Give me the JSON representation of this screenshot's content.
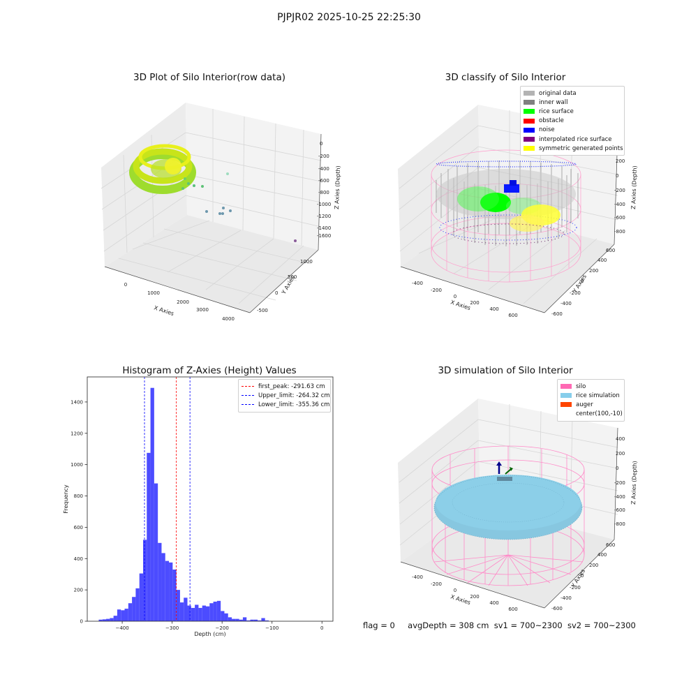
{
  "suptitle": "PJPJR02 2025-10-25 22:25:30",
  "footer": {
    "flag": "flag = 0",
    "avgDepth": "avgDepth = 308 cm",
    "sv1": "sv1 = 700~2300",
    "sv2": "sv2 = 700~2300"
  },
  "chart_data": [
    {
      "type": "scatter",
      "title": "3D Plot of Silo Interior(row data)",
      "xlabel": "X Axies",
      "ylabel": "Y Axies",
      "zlabel": "Z Axies (Depth)",
      "x_ticks": [
        "0",
        "1000",
        "2000",
        "3000",
        "4000"
      ],
      "y_ticks": [
        "-500",
        "0",
        "500",
        "1000"
      ],
      "z_ticks": [
        "0",
        "-200",
        "-400",
        "-600",
        "-800",
        "-1000",
        "-1200",
        "-1400",
        "-1600"
      ]
    },
    {
      "type": "scatter",
      "title": "3D classify of Silo Interior",
      "xlabel": "X Axies",
      "ylabel": "Y Axies",
      "zlabel": "Z Axies (Depth)",
      "x_ticks": [
        "-400",
        "-200",
        "0",
        "200",
        "400",
        "600"
      ],
      "y_ticks": [
        "-600",
        "-400",
        "-200",
        "0",
        "200",
        "400",
        "600"
      ],
      "z_ticks": [
        "200",
        "0",
        "-200",
        "-400",
        "-600",
        "-800"
      ],
      "z_top_tick": "0",
      "legend": [
        {
          "label": "original data",
          "color": "#b3b3b3"
        },
        {
          "label": "inner wall",
          "color": "#808080"
        },
        {
          "label": "rice surface",
          "color": "#00ff00"
        },
        {
          "label": "obstacle",
          "color": "#ff0000"
        },
        {
          "label": "noise",
          "color": "#0000ff"
        },
        {
          "label": "interpolated rice surface",
          "color": "#800080"
        },
        {
          "label": "symmetric generated points",
          "color": "#ffff00"
        }
      ],
      "legend_position": "upper-right"
    },
    {
      "type": "bar",
      "title": "Histogram of Z-Axies (Height) Values",
      "xlabel": "Depth (cm)",
      "ylabel": "Frequency",
      "bin_start": -447,
      "bin_width": 7.4,
      "values": [
        10,
        12,
        15,
        20,
        35,
        75,
        70,
        80,
        115,
        155,
        210,
        305,
        520,
        1075,
        1490,
        880,
        500,
        435,
        385,
        375,
        330,
        200,
        120,
        150,
        100,
        85,
        105,
        85,
        100,
        95,
        115,
        125,
        130,
        65,
        50,
        25,
        15,
        15,
        10,
        25,
        5,
        10,
        10,
        5,
        20,
        5
      ],
      "xlim": [
        -470,
        22
      ],
      "ylim": [
        0,
        1560
      ],
      "x_ticks": [
        -400,
        -300,
        -200,
        -100,
        0
      ],
      "y_ticks": [
        0,
        200,
        400,
        600,
        800,
        1000,
        1200,
        1400
      ],
      "bar_color": "#4c4cff",
      "lines": [
        {
          "label": "first_peak: -291.63 cm",
          "value": -291.63,
          "color": "#ff0000"
        },
        {
          "label": "Upper_limit: -264.32 cm",
          "value": -264.32,
          "color": "#0000ff"
        },
        {
          "label": "Lower_limit: -355.36 cm",
          "value": -355.36,
          "color": "#0000ff"
        }
      ],
      "legend_position": "upper-right"
    },
    {
      "type": "scatter",
      "title": "3D simulation of Silo Interior",
      "xlabel": "X Axies",
      "ylabel": "Y Axies",
      "zlabel": "Z Axies (Depth)",
      "x_ticks": [
        "-400",
        "-200",
        "0",
        "200",
        "400",
        "600"
      ],
      "y_ticks": [
        "-600",
        "-400",
        "-200",
        "0",
        "200",
        "400",
        "600"
      ],
      "z_ticks": [
        "400",
        "200",
        "0",
        "-200",
        "-400",
        "-600",
        "-800"
      ],
      "legend": [
        {
          "label": "silo",
          "color": "#ff69b4"
        },
        {
          "label": "rice simulation",
          "color": "#87ceeb"
        },
        {
          "label": "auger",
          "color": "#ff4500"
        },
        {
          "label": "center(100,-10)",
          "color": ""
        }
      ],
      "legend_position": "upper-right"
    }
  ]
}
